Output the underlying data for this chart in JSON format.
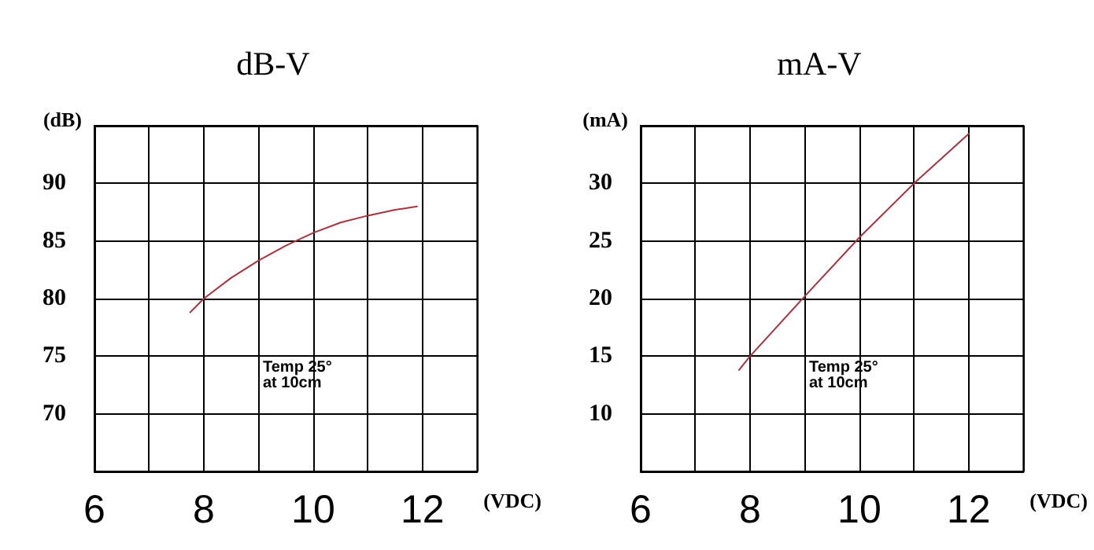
{
  "chart_data": [
    {
      "type": "line",
      "title": "dB-V",
      "xlabel": "(VDC)",
      "ylabel": "(dB)",
      "xlim": [
        6,
        13
      ],
      "ylim": [
        65,
        95
      ],
      "xticks": [
        6,
        {
          "value": 7,
          "label": null
        },
        8,
        {
          "value": 9,
          "label": null
        },
        10,
        {
          "value": 11,
          "label": null
        },
        12,
        {
          "value": 13,
          "label": null
        }
      ],
      "yticks": [
        {
          "value": 65,
          "label": null
        },
        70,
        75,
        80,
        85,
        90,
        {
          "value": 95,
          "label": null
        }
      ],
      "grid": true,
      "marker": "none",
      "line_style": "solid",
      "annotations": [
        "Temp 25°\nat 10cm"
      ],
      "series": [
        {
          "color": "#a8323e",
          "x": [
            7.75,
            8,
            8.5,
            9,
            9.5,
            10,
            10.5,
            11,
            11.5,
            11.9
          ],
          "values": [
            78.8,
            80,
            81.8,
            83.3,
            84.6,
            85.7,
            86.6,
            87.2,
            87.7,
            88
          ]
        }
      ]
    },
    {
      "type": "line",
      "title": "mA-V",
      "xlabel": "(VDC)",
      "ylabel": "(mA)",
      "xlim": [
        6,
        13
      ],
      "ylim": [
        5,
        35
      ],
      "xticks": [
        6,
        {
          "value": 7,
          "label": null
        },
        8,
        {
          "value": 9,
          "label": null
        },
        10,
        {
          "value": 11,
          "label": null
        },
        12,
        {
          "value": 13,
          "label": null
        }
      ],
      "yticks": [
        {
          "value": 5,
          "label": null
        },
        10,
        15,
        20,
        25,
        30,
        {
          "value": 35,
          "label": null
        }
      ],
      "grid": true,
      "marker": "none",
      "line_style": "solid",
      "annotations": [
        "Temp 25°\nat 10cm"
      ],
      "series": [
        {
          "color": "#a8323e",
          "x": [
            7.8,
            8,
            9,
            10,
            11,
            12
          ],
          "values": [
            13.8,
            15,
            20.2,
            25.3,
            30,
            34.3
          ]
        }
      ]
    }
  ]
}
